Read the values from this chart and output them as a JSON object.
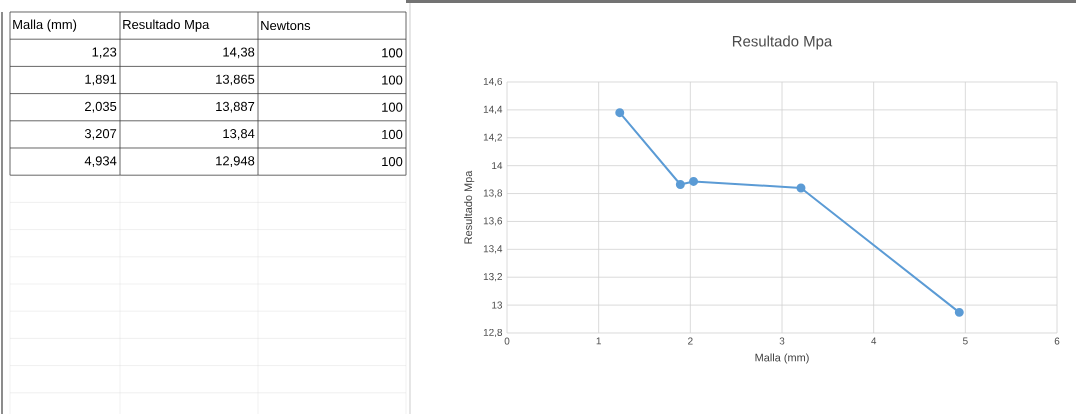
{
  "chart_data": [
    {
      "type": "other",
      "annotations": [
        "Malla (mm)",
        "Resultado Mpa",
        "Newtons",
        "1,23",
        "14,38",
        "100",
        "1,891",
        "13,865",
        "100",
        "2,035",
        "13,887",
        "100",
        "3,207",
        "13,84",
        "100",
        "4,934",
        "12,948",
        "100"
      ]
    },
    {
      "type": "line",
      "title": "Resultado Mpa",
      "xlabel": "Malla (mm)",
      "ylabel": "Resultado Mpa",
      "x": [
        1.23,
        1.891,
        2.035,
        3.207,
        4.934
      ],
      "series": [
        {
          "color": "#5b9bd5",
          "values": [
            14.38,
            13.865,
            13.887,
            13.84,
            12.948
          ]
        }
      ],
      "xlim": [
        0,
        6
      ],
      "xticks": [
        0,
        1,
        2,
        3,
        4,
        5,
        6
      ],
      "ylim": [
        12.8,
        14.6
      ],
      "yticks": [
        {
          "value": 12.8,
          "label": "12,8"
        },
        {
          "value": 13,
          "label": "13"
        },
        {
          "value": 13.2,
          "label": "13,2"
        },
        {
          "value": 13.4,
          "label": "13,4"
        },
        {
          "value": 13.6,
          "label": "13,6"
        },
        {
          "value": 13.8,
          "label": "13,8"
        },
        {
          "value": 14,
          "label": "14"
        },
        {
          "value": 14.2,
          "label": "14,2"
        },
        {
          "value": 14.4,
          "label": "14,4"
        },
        {
          "value": 14.6,
          "label": "14,6"
        }
      ],
      "grid": true,
      "marker": "circle",
      "line_style": "solid"
    }
  ]
}
